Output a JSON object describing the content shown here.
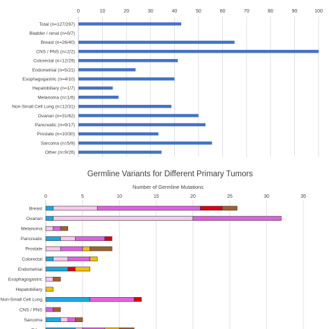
{
  "chart_data": [
    {
      "type": "bar",
      "orientation": "horizontal",
      "categories": [
        "Total (n=127/297)",
        "Bladder / renal (n=0/7)",
        "Breast (n=26/40)",
        "CNS / PNS (n=2/2)",
        "Colorectal (n=12/29)",
        "Endometrial (n=5/21)",
        "Esophagogastric (n=4/10)",
        "Hepatobiliary (n=1/7)",
        "Melanoma (n=1/6)",
        "Non-Small Cell Lung (n=12/31)",
        "Ovarian (n=31/62)",
        "Pancreatic (n=9/17)",
        "Prostate (n=10/30)",
        "Sarcoma (n=5/9)",
        "Other (n=9/26)"
      ],
      "values": [
        42.8,
        0,
        65,
        100,
        41.4,
        23.8,
        40,
        14.3,
        16.7,
        38.7,
        50,
        52.9,
        33.3,
        55.6,
        34.6
      ],
      "xlim": [
        0,
        100
      ],
      "xticks": [
        0,
        10,
        20,
        30,
        40,
        50,
        60,
        70,
        80,
        90,
        100
      ],
      "tick_position": "top",
      "grid": true,
      "color": "#4472C4"
    },
    {
      "type": "bar",
      "orientation": "horizontal",
      "stacked": true,
      "title": "Germline Variants for Different Primary Tumors",
      "xlabel": "Number of Germline Mutations",
      "categories": [
        "Breast",
        "Ovarian",
        "Melanoma",
        "Pancreatic",
        "Prostate",
        "Colorectal",
        "Endometrial",
        "Esophagogastric",
        "Hepatobiliary",
        "Non-Small Cell Lung",
        "CNS / PNS",
        "Sarcoma",
        "Other"
      ],
      "xlim": [
        0,
        35
      ],
      "xticks": [
        0,
        5,
        10,
        15,
        20,
        25,
        30,
        35
      ],
      "tick_position": "top",
      "grid": true,
      "legend": "none",
      "series_colors": [
        "#1CA7E0",
        "#F8C8EC",
        "#E25FE0",
        "#D8000F",
        "#F5C000",
        "#A0622D"
      ],
      "series": [
        {
          "values": [
            1,
            1,
            0,
            2,
            0,
            1,
            3,
            0,
            0,
            6,
            0,
            2,
            4
          ]
        },
        {
          "values": [
            6,
            19,
            1,
            2,
            2,
            2,
            0,
            1,
            0,
            0,
            0,
            1,
            1
          ]
        },
        {
          "values": [
            14,
            12,
            1,
            4,
            3,
            3,
            0,
            0,
            0,
            6,
            1,
            1,
            3
          ]
        },
        {
          "values": [
            3,
            0,
            0,
            1,
            0,
            0,
            1,
            0,
            0,
            1,
            0,
            0,
            0
          ]
        },
        {
          "values": [
            0,
            0,
            0,
            0,
            1,
            1,
            2,
            0,
            1,
            0,
            0,
            0,
            2
          ]
        },
        {
          "values": [
            2,
            0,
            1,
            0,
            3,
            0,
            0,
            1,
            0,
            0,
            1,
            1,
            2
          ]
        }
      ]
    }
  ]
}
